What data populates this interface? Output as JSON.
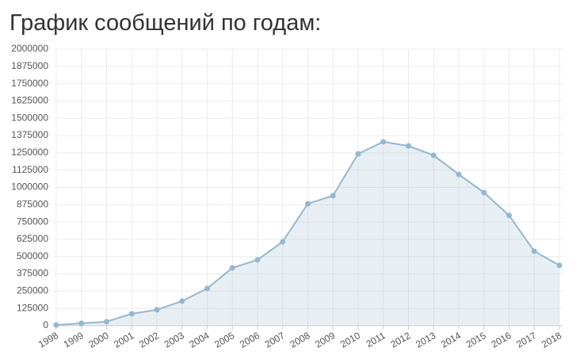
{
  "chart_data": {
    "type": "area",
    "title": "График сообщений по годам:",
    "categories": [
      "1998",
      "1999",
      "2000",
      "2001",
      "2002",
      "2003",
      "2004",
      "2005",
      "2006",
      "2007",
      "2008",
      "2009",
      "2010",
      "2011",
      "2012",
      "2013",
      "2014",
      "2015",
      "2016",
      "2017",
      "2018"
    ],
    "values": [
      5000,
      17000,
      29000,
      86000,
      115000,
      178000,
      269000,
      418000,
      476000,
      607000,
      882000,
      940000,
      1243000,
      1330000,
      1300000,
      1232000,
      1094000,
      963000,
      797000,
      539000,
      436000
    ],
    "color": "#94b8cf",
    "ylim": [
      0,
      2000000
    ],
    "yticks": [
      0,
      125000,
      250000,
      375000,
      500000,
      625000,
      750000,
      875000,
      1000000,
      1125000,
      1250000,
      1375000,
      1500000,
      1625000,
      1750000,
      1875000,
      2000000
    ],
    "grid": true
  }
}
